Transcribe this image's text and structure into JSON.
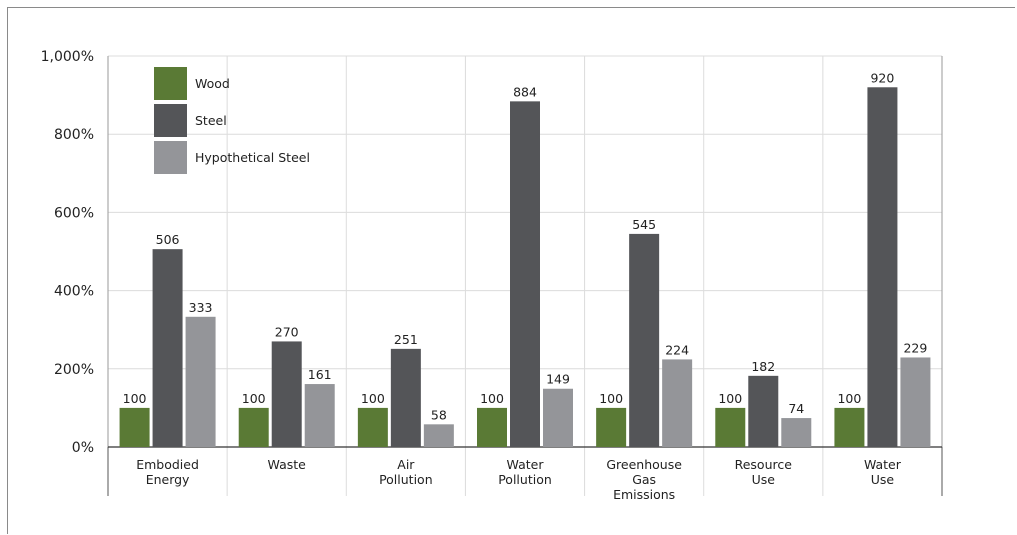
{
  "chart_data": {
    "type": "bar",
    "categories": [
      [
        "Embodied",
        "Energy"
      ],
      [
        "Waste"
      ],
      [
        "Air",
        "Pollution"
      ],
      [
        "Water",
        "Pollution"
      ],
      [
        "Greenhouse",
        "Gas",
        "Emissions"
      ],
      [
        "Resource",
        "Use"
      ],
      [
        "Water",
        "Use"
      ]
    ],
    "series": [
      {
        "name": "Wood",
        "color": "#5a7a35",
        "values": [
          100,
          100,
          100,
          100,
          100,
          100,
          100
        ]
      },
      {
        "name": "Steel",
        "color": "#545558",
        "values": [
          506,
          270,
          251,
          884,
          545,
          182,
          920
        ]
      },
      {
        "name": "Hypothetical Steel",
        "color": "#949599",
        "values": [
          333,
          161,
          58,
          149,
          224,
          74,
          229
        ]
      }
    ],
    "data_labels": [
      [
        "100",
        "506",
        "333"
      ],
      [
        "100",
        "270",
        "161"
      ],
      [
        "100",
        "251",
        "58"
      ],
      [
        "100",
        "884",
        "149"
      ],
      [
        "100",
        "545",
        "224"
      ],
      [
        "100",
        "182",
        "74"
      ],
      [
        "100",
        "920",
        "229"
      ]
    ],
    "yticks": [
      0,
      200,
      400,
      600,
      800,
      1000
    ],
    "ytick_labels": [
      "0%",
      "200%",
      "400%",
      "600%",
      "800%",
      "1,000%"
    ],
    "ylim": [
      0,
      1000
    ],
    "title": "",
    "xlabel": "",
    "ylabel": "",
    "grid": true,
    "legend": "top-left"
  }
}
